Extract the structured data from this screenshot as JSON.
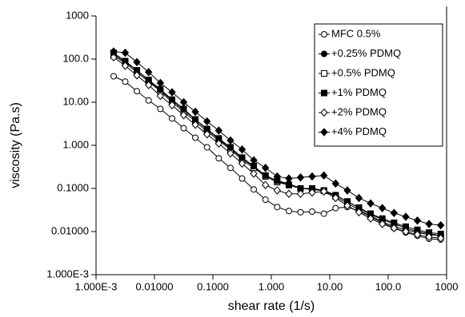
{
  "chart_data": {
    "type": "line",
    "xlabel": "shear rate (1/s)",
    "ylabel": "viscosity (Pa.s)",
    "xscale": "log",
    "yscale": "log",
    "legend": "upper right",
    "xlim": [
      0.001,
      1000
    ],
    "ylim": [
      0.001,
      1000
    ],
    "xticks": [
      {
        "value": 0.001,
        "label": "1.000E-3"
      },
      {
        "value": 0.01,
        "label": "0.01000"
      },
      {
        "value": 0.1,
        "label": "0.1000"
      },
      {
        "value": 1,
        "label": "1.000"
      },
      {
        "value": 10,
        "label": "10.00"
      },
      {
        "value": 100,
        "label": "100.0"
      },
      1000
    ],
    "yticks": [
      {
        "value": 0.001,
        "label": "1.000E-3"
      },
      {
        "value": 0.01,
        "label": "0.01000"
      },
      {
        "value": 0.1,
        "label": "0.1000"
      },
      {
        "value": 1,
        "label": "1.000"
      },
      {
        "value": 10,
        "label": "10.00"
      },
      {
        "value": 100,
        "label": "100.0"
      },
      1000
    ],
    "x": [
      0.002,
      0.00316,
      0.005,
      0.00794,
      0.0126,
      0.02,
      0.0316,
      0.05,
      0.0794,
      0.126,
      0.2,
      0.316,
      0.5,
      0.794,
      1.26,
      2,
      3.16,
      5,
      7.94,
      12.6,
      20,
      31.6,
      50,
      79.4,
      126,
      200,
      316,
      500,
      794
    ],
    "series": [
      {
        "name": "MFC 0.5%",
        "color": "#000000",
        "marker": "circle",
        "filled": false,
        "values": [
          40,
          30,
          18,
          11,
          7,
          4.2,
          2.5,
          1.5,
          0.9,
          0.5,
          0.3,
          0.17,
          0.095,
          0.055,
          0.037,
          0.03,
          0.028,
          0.029,
          0.026,
          0.035,
          0.037,
          0.03,
          0.022,
          0.016,
          0.012,
          0.0095,
          0.008,
          0.0068,
          0.0065
        ]
      },
      {
        "name": "+0.25% PDMQ",
        "color": "#000000",
        "marker": "circle",
        "filled": true,
        "values": [
          130,
          85,
          55,
          32,
          19,
          11,
          6.5,
          4,
          2.3,
          1.4,
          0.85,
          0.5,
          0.32,
          0.2,
          0.15,
          0.13,
          0.1,
          0.1,
          0.09,
          0.07,
          0.05,
          0.035,
          0.025,
          0.019,
          0.015,
          0.012,
          0.01,
          0.009,
          0.008
        ]
      },
      {
        "name": "+0.5% PDMQ",
        "color": "#000000",
        "marker": "square",
        "filled": false,
        "values": [
          120,
          80,
          50,
          30,
          18,
          10,
          6,
          3.6,
          2.1,
          1.3,
          0.8,
          0.46,
          0.3,
          0.19,
          0.14,
          0.12,
          0.1,
          0.095,
          0.088,
          0.065,
          0.045,
          0.032,
          0.023,
          0.017,
          0.013,
          0.011,
          0.0095,
          0.0085,
          0.008
        ]
      },
      {
        "name": "+1% PDMQ",
        "color": "#000000",
        "marker": "square",
        "filled": true,
        "values": [
          140,
          90,
          55,
          33,
          20,
          11.5,
          7,
          4,
          2.4,
          1.45,
          0.9,
          0.52,
          0.33,
          0.2,
          0.15,
          0.12,
          0.1,
          0.1,
          0.09,
          0.07,
          0.05,
          0.036,
          0.026,
          0.02,
          0.016,
          0.013,
          0.011,
          0.0095,
          0.0088
        ]
      },
      {
        "name": "+2% PDMQ",
        "color": "#000000",
        "marker": "diamond",
        "filled": false,
        "values": [
          110,
          70,
          42,
          25,
          14,
          8.5,
          5,
          3,
          1.8,
          1.1,
          0.65,
          0.38,
          0.22,
          0.12,
          0.09,
          0.075,
          0.075,
          0.08,
          0.085,
          0.06,
          0.04,
          0.028,
          0.02,
          0.015,
          0.012,
          0.01,
          0.0085,
          0.0075,
          0.007
        ]
      },
      {
        "name": "+4% PDMQ",
        "color": "#000000",
        "marker": "diamond",
        "filled": true,
        "values": [
          150,
          140,
          85,
          50,
          28,
          17,
          10,
          6,
          3.6,
          2.2,
          1.3,
          0.8,
          0.45,
          0.3,
          0.19,
          0.17,
          0.18,
          0.19,
          0.2,
          0.13,
          0.09,
          0.06,
          0.045,
          0.035,
          0.027,
          0.022,
          0.018,
          0.015,
          0.014
        ]
      }
    ]
  }
}
